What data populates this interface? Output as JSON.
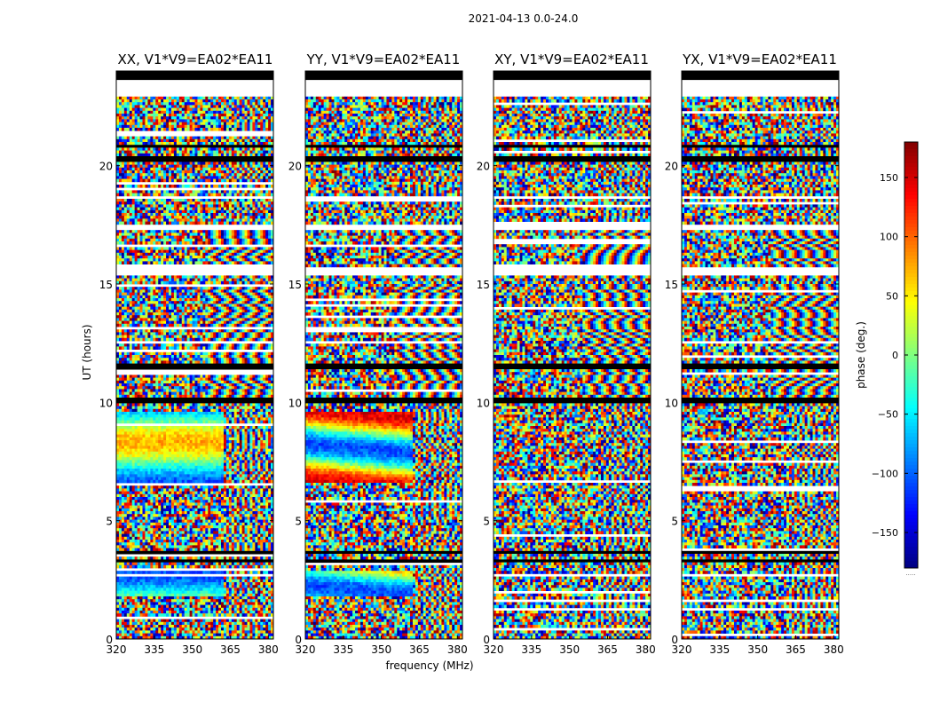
{
  "chart_data": {
    "type": "heatmap",
    "suptitle": "2021-04-13 0.0-24.0",
    "xlabel": "frequency (MHz)",
    "ylabel": "UT (hours)",
    "colorbar_label": "phase (deg.)",
    "colormap": "jet",
    "xlim": [
      320,
      382
    ],
    "ylim": [
      0,
      24
    ],
    "x_ticks": [
      320,
      335,
      350,
      365,
      380
    ],
    "y_ticks": [
      0,
      5,
      10,
      15,
      20
    ],
    "clim": [
      -180,
      180
    ],
    "colorbar_ticks": [
      150,
      100,
      50,
      0,
      -50,
      -100,
      -150
    ],
    "colorbar_tick_labels": [
      "150",
      "100",
      "50",
      "0",
      "−50",
      "−100",
      "−150"
    ],
    "colorbar_bottom_text": ".....",
    "flagged_color": "#000000",
    "flagged_hours": [
      [
        23.7,
        24.0
      ],
      [
        20.75,
        20.9
      ],
      [
        20.15,
        20.35
      ],
      [
        11.45,
        11.6
      ],
      [
        9.95,
        10.2
      ],
      [
        3.6,
        3.75
      ],
      [
        3.25,
        3.4
      ]
    ],
    "blank_hours": [
      [
        22.9,
        23.7
      ],
      [
        18.55,
        18.75
      ],
      [
        17.3,
        17.55
      ],
      [
        15.35,
        15.75
      ],
      [
        14.97,
        15.05
      ]
    ],
    "series": [
      {
        "name": "XX, V1*V9=EA02*EA11",
        "correlation": "XX",
        "baseline": "V1*V9=EA02*EA11"
      },
      {
        "name": "YY, V1*V9=EA02*EA11",
        "correlation": "YY",
        "baseline": "V1*V9=EA02*EA11"
      },
      {
        "name": "XY, V1*V9=EA02*EA11",
        "correlation": "XY",
        "baseline": "V1*V9=EA02*EA11"
      },
      {
        "name": "YX, V1*V9=EA02*EA11",
        "correlation": "YX",
        "baseline": "V1*V9=EA02*EA11"
      }
    ]
  }
}
